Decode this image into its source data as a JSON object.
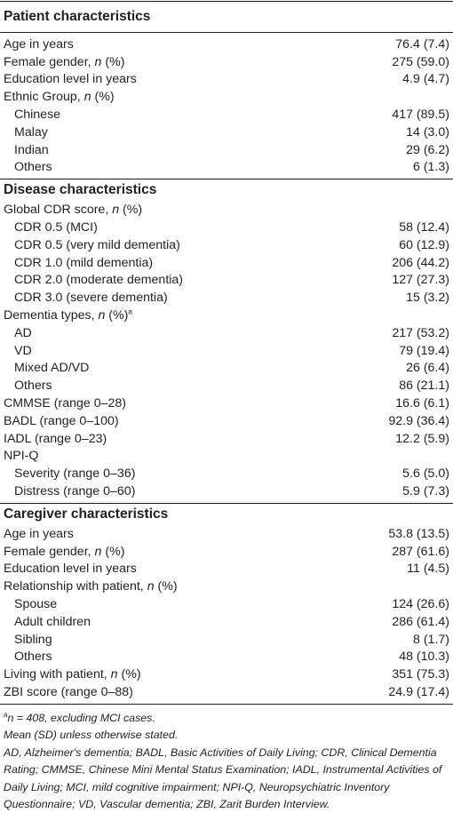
{
  "sections": [
    {
      "title": "Patient characteristics",
      "rows": [
        {
          "label": "Age in years",
          "value": "76.4 (7.4)",
          "indent": false
        },
        {
          "label": "Female gender, n (%)",
          "value": "275 (59.0)",
          "indent": false
        },
        {
          "label": "Education level in years",
          "value": "4.9 (4.7)",
          "indent": false
        },
        {
          "label": "Ethnic Group, n (%)",
          "value": "",
          "indent": false
        },
        {
          "label": "Chinese",
          "value": "417 (89.5)",
          "indent": true
        },
        {
          "label": "Malay",
          "value": "14 (3.0)",
          "indent": true
        },
        {
          "label": "Indian",
          "value": "29 (6.2)",
          "indent": true
        },
        {
          "label": "Others",
          "value": "6 (1.3)",
          "indent": true
        }
      ]
    },
    {
      "title": "Disease characteristics",
      "rows": [
        {
          "label": "Global CDR score, n (%)",
          "value": "",
          "indent": false
        },
        {
          "label": "CDR 0.5 (MCI)",
          "value": "58 (12.4)",
          "indent": true
        },
        {
          "label": "CDR 0.5 (very mild dementia)",
          "value": "60 (12.9)",
          "indent": true
        },
        {
          "label": "CDR 1.0 (mild dementia)",
          "value": "206 (44.2)",
          "indent": true
        },
        {
          "label": "CDR 2.0 (moderate dementia)",
          "value": "127 (27.3)",
          "indent": true
        },
        {
          "label": "CDR 3.0 (severe dementia)",
          "value": "15 (3.2)",
          "indent": true
        },
        {
          "label": "Dementia types, n (%)",
          "value": "",
          "indent": false,
          "sup": "a"
        },
        {
          "label": "AD",
          "value": "217 (53.2)",
          "indent": true
        },
        {
          "label": "VD",
          "value": "79 (19.4)",
          "indent": true
        },
        {
          "label": "Mixed AD/VD",
          "value": "26 (6.4)",
          "indent": true
        },
        {
          "label": "Others",
          "value": "86 (21.1)",
          "indent": true
        },
        {
          "label": "CMMSE (range 0–28)",
          "value": "16.6 (6.1)",
          "indent": false
        },
        {
          "label": "BADL (range 0–100)",
          "value": "92.9 (36.4)",
          "indent": false
        },
        {
          "label": "IADL (range 0–23)",
          "value": "12.2 (5.9)",
          "indent": false
        },
        {
          "label": "NPI-Q",
          "value": "",
          "indent": false
        },
        {
          "label": "Severity (range 0–36)",
          "value": "5.6 (5.0)",
          "indent": true
        },
        {
          "label": "Distress (range 0–60)",
          "value": "5.9 (7.3)",
          "indent": true
        }
      ]
    },
    {
      "title": "Caregiver characteristics",
      "rows": [
        {
          "label": "Age in years",
          "value": "53.8 (13.5)",
          "indent": false
        },
        {
          "label": "Female gender, n (%)",
          "value": "287 (61.6)",
          "indent": false
        },
        {
          "label": "Education level in years",
          "value": "11 (4.5)",
          "indent": false
        },
        {
          "label": "Relationship with patient, n (%)",
          "value": "",
          "indent": false
        },
        {
          "label": "Spouse",
          "value": "124 (26.6)",
          "indent": true
        },
        {
          "label": "Adult children",
          "value": "286 (61.4)",
          "indent": true
        },
        {
          "label": "Sibling",
          "value": "8 (1.7)",
          "indent": true
        },
        {
          "label": "Others",
          "value": "48 (10.3)",
          "indent": true
        },
        {
          "label": "Living with patient, n (%)",
          "value": "351 (75.3)",
          "indent": false
        },
        {
          "label": "ZBI score (range 0–88)",
          "value": "24.9 (17.4)",
          "indent": false
        }
      ]
    }
  ],
  "notes": {
    "footnote_a_marker": "a",
    "footnote_a": "n = 408, excluding MCI cases.",
    "mean_sd": "Mean (SD) unless otherwise stated.",
    "abbreviations": "AD, Alzheimer's dementia; BADL, Basic Activities of Daily Living; CDR, Clinical Dementia Rating; CMMSE, Chinese Mini Mental Status Examination; IADL, Instrumental Activities of Daily Living; MCI, mild cognitive impairment; NPI-Q, Neuropsychiatric Inventory Questionnaire; VD, Vascular dementia; ZBI, Zarit Burden Interview."
  }
}
